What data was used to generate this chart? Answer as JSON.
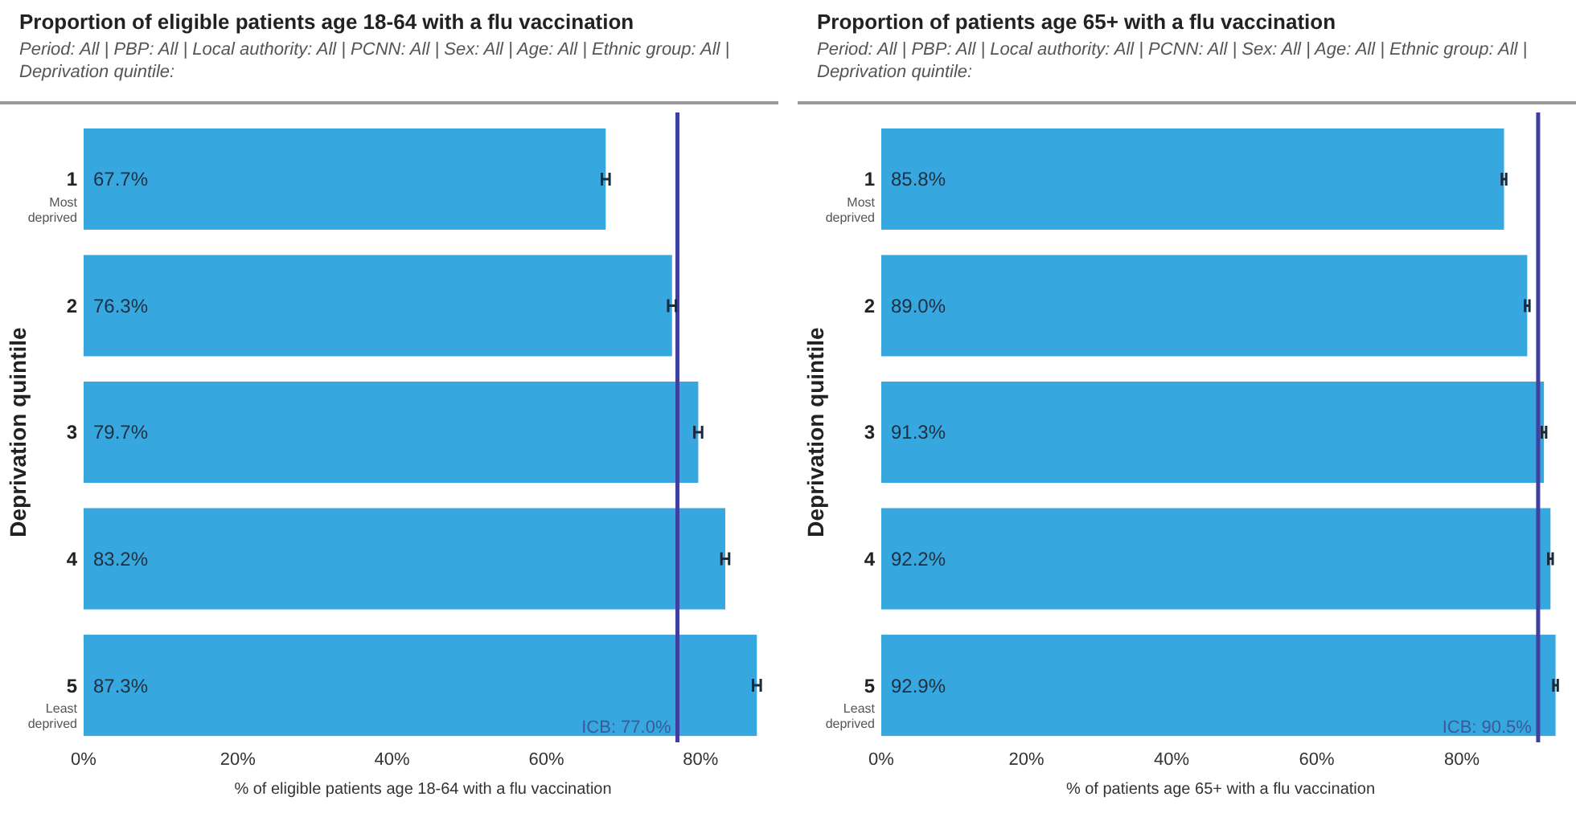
{
  "chart_data": [
    {
      "type": "bar",
      "orientation": "horizontal",
      "title": "Proportion of eligible patients age 18-64 with a flu vaccination",
      "subtitle": "Period: All | PBP: All | Local authority: All | PCNN: All | Sex: All | Age: All | Ethnic group: All | Deprivation quintile:",
      "xlabel": "% of eligible patients age 18-64 with a flu vaccination",
      "ylabel": "Deprivation quintile",
      "categories": [
        "1\nMost\ndeprived",
        "2",
        "3",
        "4",
        "5\nLeast\ndeprived"
      ],
      "values": [
        67.7,
        76.3,
        79.7,
        83.2,
        87.3
      ],
      "color": "#36a7df",
      "value_labels": [
        "67.7%",
        "76.3%",
        "79.7%",
        "83.2%",
        "87.3%"
      ],
      "errors": [
        0.5,
        0.5,
        0.5,
        0.5,
        0.5
      ],
      "xlim": [
        0,
        88
      ],
      "xticks": [
        {
          "value": 0,
          "label": "0%"
        },
        {
          "value": 20,
          "label": "20%"
        },
        {
          "value": 40,
          "label": "40%"
        },
        {
          "value": 60,
          "label": "60%"
        },
        {
          "value": 80,
          "label": "80%"
        }
      ],
      "ref_lines": [
        {
          "axis": "x",
          "value": 77.0,
          "label": "ICB: 77.0%",
          "color": "#3f3f9f"
        }
      ]
    },
    {
      "type": "bar",
      "orientation": "horizontal",
      "title": "Proportion of patients age 65+ with a flu vaccination",
      "subtitle": "Period: All | PBP: All | Local authority: All | PCNN: All | Sex: All | Age: All | Ethnic group: All | Deprivation quintile:",
      "xlabel": "% of patients age 65+ with a flu vaccination",
      "ylabel": "Deprivation quintile",
      "categories": [
        "1\nMost\ndeprived",
        "2",
        "3",
        "4",
        "5\nLeast\ndeprived"
      ],
      "values": [
        85.8,
        89.0,
        91.3,
        92.2,
        92.9
      ],
      "color": "#36a7df",
      "value_labels": [
        "85.8%",
        "89.0%",
        "91.3%",
        "92.2%",
        "92.9%"
      ],
      "errors": [
        0.3,
        0.3,
        0.3,
        0.3,
        0.3
      ],
      "xlim": [
        0,
        93.5
      ],
      "xticks": [
        {
          "value": 0,
          "label": "0%"
        },
        {
          "value": 20,
          "label": "20%"
        },
        {
          "value": 40,
          "label": "40%"
        },
        {
          "value": 60,
          "label": "60%"
        },
        {
          "value": 80,
          "label": "80%"
        }
      ],
      "ref_lines": [
        {
          "axis": "x",
          "value": 90.5,
          "label": "ICB: 90.5%",
          "color": "#3f3f9f"
        }
      ]
    }
  ]
}
